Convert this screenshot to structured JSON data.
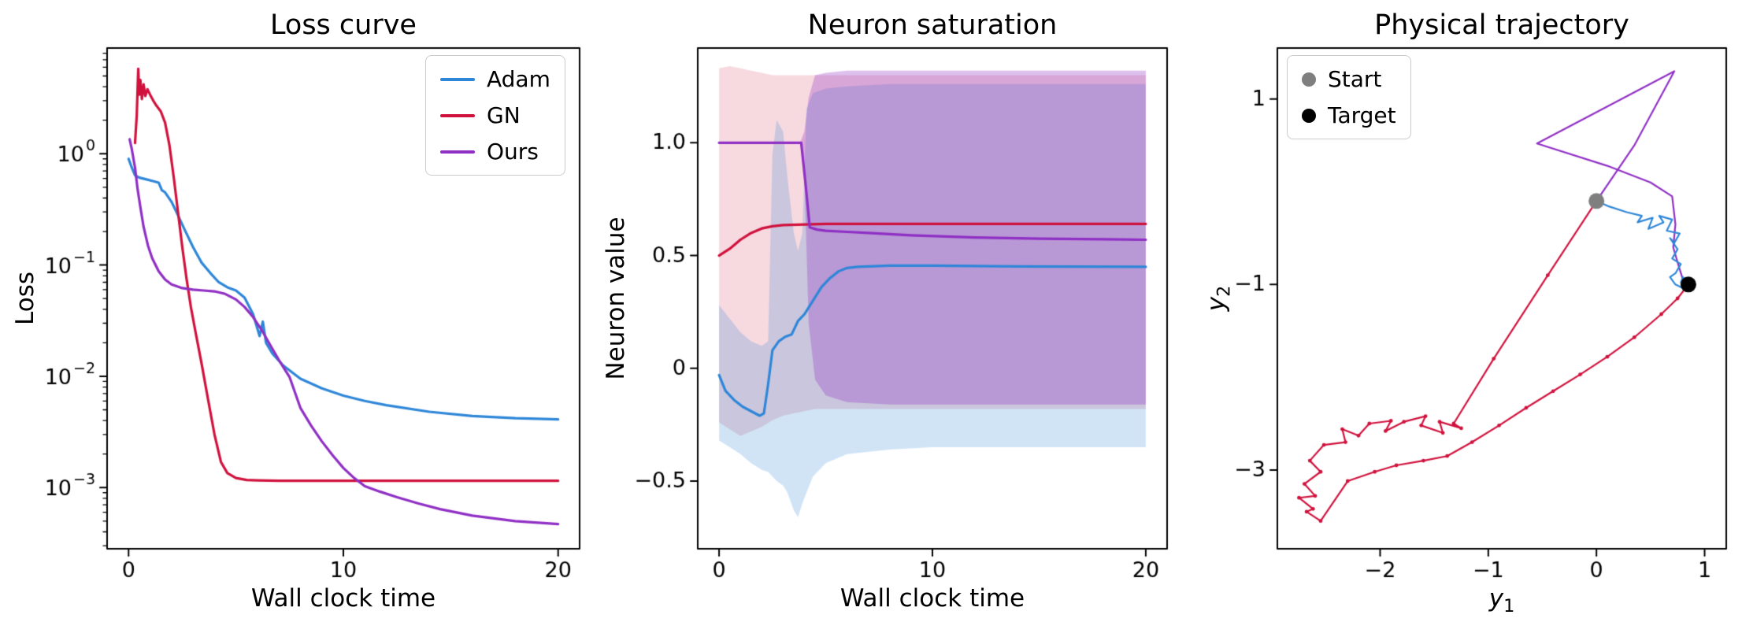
{
  "figure": {
    "background": "#ffffff"
  },
  "colors": {
    "adam": "#2e86d8",
    "gn": "#d0113c",
    "ours": "#8f2fc4",
    "start": "#7f7f7f",
    "target": "#000000",
    "axes": "#000000",
    "adam_band": "rgba(46,134,216,0.22)",
    "gn_band": "rgba(208,17,60,0.16)",
    "ours_band": "rgba(143,47,196,0.30)"
  },
  "chart_data": [
    {
      "type": "line",
      "title": "Loss curve",
      "xlabel": "Wall clock time",
      "ylabel": "Loss",
      "yscale": "log",
      "xlim": [
        -1,
        21
      ],
      "ylim": [
        -3.55,
        0.95
      ],
      "grid": false,
      "legend": {
        "position": "top-right",
        "entries": [
          "Adam",
          "GN",
          "Ours"
        ]
      },
      "xticks": [
        {
          "v": 0,
          "label": "0"
        },
        {
          "v": 10,
          "label": "10"
        },
        {
          "v": 20,
          "label": "20"
        }
      ],
      "yticks": [
        {
          "v": 0,
          "base": "10",
          "exp": "0"
        },
        {
          "v": -1,
          "base": "10",
          "exp": "−1"
        },
        {
          "v": -2,
          "base": "10",
          "exp": "−2"
        },
        {
          "v": -3,
          "base": "10",
          "exp": "−3"
        }
      ],
      "series": [
        {
          "name": "Adam",
          "color": "#2e86d8",
          "width": 3.2,
          "x": [
            0,
            0.15,
            0.3,
            0.5,
            0.8,
            1.1,
            1.4,
            1.55,
            1.7,
            2.0,
            2.3,
            2.6,
            3.0,
            3.4,
            3.8,
            4.2,
            4.6,
            5.0,
            5.4,
            5.8,
            6.1,
            6.25,
            6.4,
            6.7,
            7.2,
            8,
            9,
            10,
            11,
            12,
            14,
            16,
            18,
            20
          ],
          "y": [
            0.9,
            0.75,
            0.64,
            0.61,
            0.59,
            0.57,
            0.55,
            0.47,
            0.45,
            0.37,
            0.28,
            0.21,
            0.145,
            0.105,
            0.085,
            0.07,
            0.063,
            0.059,
            0.051,
            0.036,
            0.023,
            0.031,
            0.02,
            0.016,
            0.0125,
            0.0095,
            0.0078,
            0.0067,
            0.006,
            0.0055,
            0.0048,
            0.0044,
            0.0042,
            0.0041
          ]
        },
        {
          "name": "GN",
          "color": "#d0113c",
          "width": 3.2,
          "x": [
            0.3,
            0.38,
            0.45,
            0.5,
            0.55,
            0.62,
            0.7,
            0.78,
            0.88,
            1.0,
            1.15,
            1.3,
            1.5,
            1.7,
            1.9,
            2.1,
            2.3,
            2.5,
            2.7,
            2.9,
            3.1,
            3.4,
            3.7,
            4.0,
            4.3,
            4.6,
            5.0,
            5.5,
            6,
            7,
            8,
            10,
            12,
            14,
            16,
            18,
            20
          ],
          "y": [
            1.25,
            2.2,
            5.8,
            3.4,
            4.6,
            3.1,
            4.2,
            3.3,
            3.8,
            3.4,
            3.0,
            2.7,
            2.4,
            1.9,
            1.2,
            0.62,
            0.3,
            0.145,
            0.075,
            0.042,
            0.026,
            0.013,
            0.0062,
            0.003,
            0.0017,
            0.00135,
            0.00122,
            0.00117,
            0.00116,
            0.00115,
            0.00115,
            0.00115,
            0.00115,
            0.00115,
            0.00115,
            0.00115,
            0.00115
          ]
        },
        {
          "name": "Ours",
          "color": "#8f2fc4",
          "width": 3.2,
          "x": [
            0.05,
            0.15,
            0.3,
            0.42,
            0.55,
            0.7,
            0.9,
            1.1,
            1.4,
            1.7,
            2.0,
            2.5,
            3.0,
            3.5,
            4.0,
            4.5,
            5.0,
            5.4,
            5.8,
            6.2,
            6.6,
            7.0,
            7.5,
            8.0,
            8.5,
            9.0,
            9.5,
            10,
            10.5,
            11,
            11.7,
            12.5,
            13.5,
            14.5,
            16,
            18,
            20
          ],
          "y": [
            1.35,
            1.1,
            0.75,
            0.48,
            0.33,
            0.22,
            0.15,
            0.115,
            0.088,
            0.074,
            0.067,
            0.062,
            0.06,
            0.059,
            0.058,
            0.055,
            0.049,
            0.042,
            0.034,
            0.026,
            0.019,
            0.014,
            0.0098,
            0.0052,
            0.0036,
            0.0026,
            0.00195,
            0.0015,
            0.00122,
            0.00103,
            0.00092,
            0.00082,
            0.00072,
            0.00064,
            0.00056,
            0.0005,
            0.00047
          ]
        }
      ]
    },
    {
      "type": "line",
      "title": "Neuron saturation",
      "xlabel": "Wall clock time",
      "ylabel": "Neuron value",
      "yscale": "linear",
      "xlim": [
        -1,
        21
      ],
      "ylim": [
        -0.8,
        1.42
      ],
      "grid": false,
      "xticks": [
        {
          "v": 0,
          "label": "0"
        },
        {
          "v": 10,
          "label": "10"
        },
        {
          "v": 20,
          "label": "20"
        }
      ],
      "yticks": [
        {
          "v": 1.0,
          "label": "1.0"
        },
        {
          "v": 0.5,
          "label": "0.5"
        },
        {
          "v": 0,
          "label": "0"
        },
        {
          "v": -0.5,
          "label": "−0.5"
        }
      ],
      "bands": [
        {
          "name": "gn-band",
          "color": "rgba(208,17,60,0.16)",
          "x": [
            0,
            0.5,
            1,
            1.5,
            2,
            2.5,
            3,
            3.5,
            4,
            4.5,
            5,
            6,
            8,
            10,
            12,
            15,
            20
          ],
          "upper": [
            1.33,
            1.34,
            1.33,
            1.32,
            1.31,
            1.3,
            1.3,
            1.3,
            1.3,
            1.3,
            1.3,
            1.3,
            1.3,
            1.3,
            1.3,
            1.3,
            1.3
          ],
          "lower": [
            -0.24,
            -0.27,
            -0.3,
            -0.28,
            -0.26,
            -0.23,
            -0.21,
            -0.2,
            -0.19,
            -0.18,
            -0.18,
            -0.18,
            -0.18,
            -0.18,
            -0.18,
            -0.18,
            -0.18
          ]
        },
        {
          "name": "adam-band",
          "color": "rgba(46,134,216,0.22)",
          "x": [
            0,
            0.5,
            1,
            1.5,
            2,
            2.3,
            2.5,
            2.7,
            3.0,
            3.2,
            3.5,
            3.7,
            3.9,
            4.1,
            4.4,
            5,
            6,
            8,
            10,
            15,
            20
          ],
          "upper": [
            0.28,
            0.22,
            0.16,
            0.12,
            0.1,
            0.12,
            0.95,
            1.1,
            1.05,
            0.85,
            0.6,
            0.52,
            0.6,
            1.15,
            1.22,
            1.24,
            1.25,
            1.26,
            1.26,
            1.26,
            1.26
          ],
          "lower": [
            -0.32,
            -0.35,
            -0.38,
            -0.42,
            -0.45,
            -0.46,
            -0.48,
            -0.5,
            -0.52,
            -0.55,
            -0.63,
            -0.66,
            -0.6,
            -0.55,
            -0.48,
            -0.42,
            -0.38,
            -0.36,
            -0.35,
            -0.35,
            -0.35
          ]
        },
        {
          "name": "ours-band",
          "color": "rgba(143,47,196,0.30)",
          "x": [
            0,
            3.8,
            4.0,
            4.2,
            4.5,
            5,
            6,
            8,
            10,
            15,
            20
          ],
          "upper": [
            1.0,
            1.0,
            1.05,
            1.2,
            1.3,
            1.31,
            1.32,
            1.32,
            1.32,
            1.32,
            1.32
          ],
          "lower": [
            1.0,
            1.0,
            0.85,
            0.2,
            -0.05,
            -0.12,
            -0.15,
            -0.16,
            -0.16,
            -0.16,
            -0.16
          ]
        }
      ],
      "series": [
        {
          "name": "Adam",
          "color": "#2e86d8",
          "width": 3.2,
          "x": [
            0,
            0.3,
            0.7,
            1.1,
            1.5,
            1.9,
            2.1,
            2.3,
            2.5,
            2.8,
            3.1,
            3.4,
            3.7,
            4.0,
            4.4,
            4.8,
            5.2,
            5.6,
            6,
            6.5,
            7,
            8,
            10,
            14,
            20
          ],
          "y": [
            -0.03,
            -0.1,
            -0.14,
            -0.17,
            -0.19,
            -0.21,
            -0.2,
            -0.07,
            0.08,
            0.12,
            0.14,
            0.15,
            0.21,
            0.24,
            0.3,
            0.36,
            0.4,
            0.43,
            0.445,
            0.45,
            0.452,
            0.455,
            0.455,
            0.452,
            0.45
          ]
        },
        {
          "name": "GN",
          "color": "#d0113c",
          "width": 3.2,
          "x": [
            0,
            0.5,
            1,
            1.5,
            2,
            2.5,
            3,
            4,
            5,
            8,
            12,
            16,
            20
          ],
          "y": [
            0.5,
            0.53,
            0.57,
            0.6,
            0.62,
            0.63,
            0.635,
            0.638,
            0.64,
            0.64,
            0.64,
            0.64,
            0.64
          ]
        },
        {
          "name": "Ours",
          "color": "#8f2fc4",
          "width": 3.2,
          "x": [
            0,
            1,
            2,
            3,
            3.85,
            4.05,
            4.25,
            4.6,
            5,
            6,
            7,
            9,
            12,
            15,
            18,
            20
          ],
          "y": [
            1.0,
            1.0,
            1.0,
            1.0,
            1.0,
            0.82,
            0.625,
            0.615,
            0.61,
            0.605,
            0.6,
            0.59,
            0.58,
            0.575,
            0.572,
            0.57
          ]
        }
      ]
    },
    {
      "type": "trajectory",
      "title": "Physical trajectory",
      "xlabel_base": "y",
      "xlabel_sub": "1",
      "ylabel_base": "y",
      "ylabel_sub": "2",
      "yscale": "linear",
      "xlim": [
        -2.95,
        1.2
      ],
      "ylim": [
        -3.85,
        1.55
      ],
      "grid": false,
      "legend": {
        "position": "top-left",
        "entries": [
          {
            "label": "Start",
            "color": "#7f7f7f"
          },
          {
            "label": "Target",
            "color": "#000000"
          }
        ]
      },
      "xticks": [
        {
          "v": -2,
          "label": "−2"
        },
        {
          "v": -1,
          "label": "−1"
        },
        {
          "v": 0,
          "label": "0"
        },
        {
          "v": 1,
          "label": "1"
        }
      ],
      "yticks": [
        {
          "v": 1,
          "label": "1"
        },
        {
          "v": -1,
          "label": "−1"
        },
        {
          "v": -3,
          "label": "−3"
        }
      ],
      "markers": [
        {
          "name": "start",
          "label": "Start",
          "x": 0,
          "y": -0.1,
          "color": "#7f7f7f",
          "radius": 10
        },
        {
          "name": "target",
          "label": "Target",
          "x": 0.85,
          "y": -1.0,
          "color": "#000000",
          "radius": 10
        }
      ],
      "series": [
        {
          "name": "Ours",
          "color": "#8f2fc4",
          "width": 2.2,
          "x": [
            0,
            0.35,
            0.72,
            -0.55,
            0.1,
            0.5,
            0.7,
            0.73,
            0.71,
            0.76,
            0.8,
            0.84
          ],
          "y": [
            -0.1,
            0.5,
            1.3,
            0.52,
            0.28,
            0.1,
            -0.05,
            -0.35,
            -0.6,
            -0.8,
            -0.95,
            -1.0
          ]
        },
        {
          "name": "Adam",
          "color": "#2e86d8",
          "width": 2.2,
          "x": [
            0,
            0.12,
            0.28,
            0.42,
            0.38,
            0.52,
            0.48,
            0.62,
            0.58,
            0.7,
            0.65,
            0.77,
            0.72,
            0.68,
            0.75,
            0.7,
            0.78,
            0.73,
            0.68,
            0.73,
            0.8,
            0.85,
            0.8,
            0.78,
            0.84
          ],
          "y": [
            -0.1,
            -0.16,
            -0.22,
            -0.26,
            -0.33,
            -0.28,
            -0.4,
            -0.33,
            -0.26,
            -0.3,
            -0.42,
            -0.45,
            -0.55,
            -0.5,
            -0.62,
            -0.72,
            -0.78,
            -0.88,
            -0.92,
            -1.0,
            -1.04,
            -0.98,
            -0.92,
            -0.98,
            -1.0
          ]
        },
        {
          "name": "GN",
          "color": "#d0113c",
          "width": 2.2,
          "marker_size": 2.4,
          "x": [
            0,
            -0.45,
            -0.95,
            -1.32,
            -1.25,
            -1.45,
            -1.42,
            -1.62,
            -1.58,
            -1.78,
            -1.95,
            -1.9,
            -2.1,
            -2.2,
            -2.35,
            -2.32,
            -2.52,
            -2.65,
            -2.55,
            -2.7,
            -2.6,
            -2.75,
            -2.62,
            -2.68,
            -2.55,
            -2.3,
            -2.05,
            -1.85,
            -1.6,
            -1.38,
            -1.15,
            -0.9,
            -0.65,
            -0.4,
            -0.15,
            0.1,
            0.35,
            0.6,
            0.75,
            0.85
          ],
          "y": [
            -0.1,
            -0.9,
            -1.8,
            -2.5,
            -2.55,
            -2.48,
            -2.6,
            -2.52,
            -2.42,
            -2.48,
            -2.58,
            -2.47,
            -2.5,
            -2.63,
            -2.56,
            -2.7,
            -2.73,
            -2.9,
            -3.02,
            -3.15,
            -3.28,
            -3.3,
            -3.42,
            -3.45,
            -3.55,
            -3.12,
            -3.02,
            -2.95,
            -2.9,
            -2.85,
            -2.7,
            -2.52,
            -2.33,
            -2.15,
            -1.97,
            -1.78,
            -1.57,
            -1.32,
            -1.15,
            -1.0
          ]
        }
      ]
    }
  ]
}
